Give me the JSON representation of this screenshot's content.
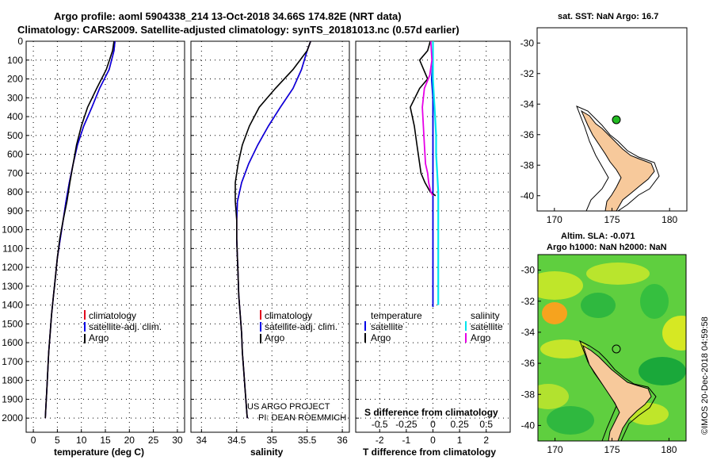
{
  "title_line1": "Argo profile: aoml 5904338_214 13-Oct-2018 34.66S 174.82E (NRT data)",
  "title_line2": "Climatology: CARS2009. Satellite-adjusted climatology: synTS_20181013.nc (0.57d earlier)",
  "colors": {
    "climatology": "#e0001b",
    "satellite": "#0000e6",
    "argo": "#000000",
    "s_satellite": "#00e5ee",
    "s_argo": "#e600e6",
    "land": "#f7c99b",
    "map_marker": "#22bb22"
  },
  "chart_data": [
    {
      "type": "line",
      "panel": "temperature",
      "xlabel": "temperature (deg C)",
      "xlim": [
        -1.5,
        31.5
      ],
      "ylim": [
        2075,
        0
      ],
      "xticks": [
        0,
        5,
        10,
        15,
        20,
        25,
        30
      ],
      "yticks": [
        0,
        100,
        200,
        300,
        400,
        500,
        600,
        700,
        800,
        900,
        1000,
        1100,
        1200,
        1300,
        1400,
        1500,
        1600,
        1700,
        1800,
        1900,
        2000
      ],
      "legend": [
        "climatology",
        "satellite-adj. clim.",
        "Argo"
      ],
      "series": [
        {
          "name": "climatology",
          "x": [
            17,
            16.8,
            15.8,
            13.8,
            12.2,
            10.5,
            9.2,
            8.3,
            7.5,
            6.8,
            6.2,
            5.6,
            5.0,
            4.6,
            4.2,
            3.8,
            3.5,
            3.2,
            3.0,
            2.8,
            2.6,
            2.5
          ],
          "depth": [
            0,
            50,
            150,
            250,
            350,
            450,
            550,
            650,
            750,
            850,
            950,
            1050,
            1150,
            1250,
            1350,
            1450,
            1550,
            1650,
            1750,
            1850,
            1950,
            2000
          ]
        },
        {
          "name": "satellite-adj. clim.",
          "x": [
            17,
            16.8,
            15.8,
            13.8,
            12.2,
            10.5,
            9.2,
            8.3,
            7.5,
            6.8,
            6.2,
            5.6,
            5.0,
            4.6,
            4.2,
            3.8,
            3.5,
            3.2,
            3.0,
            2.8,
            2.6,
            2.5
          ],
          "depth": [
            0,
            50,
            150,
            250,
            350,
            450,
            550,
            650,
            750,
            850,
            950,
            1050,
            1150,
            1250,
            1350,
            1450,
            1550,
            1650,
            1750,
            1850,
            1950,
            2000
          ]
        },
        {
          "name": "Argo",
          "x": [
            16.8,
            16.5,
            15.2,
            13.2,
            11.3,
            10.0,
            9.0,
            8.3,
            7.6,
            7.0,
            6.2,
            5.5,
            5.0,
            4.6,
            4.2,
            3.8,
            3.5,
            3.2,
            3.0,
            2.8,
            2.6,
            2.5
          ],
          "depth": [
            0,
            50,
            150,
            250,
            350,
            450,
            550,
            650,
            750,
            850,
            950,
            1050,
            1150,
            1250,
            1350,
            1450,
            1550,
            1650,
            1750,
            1850,
            1950,
            2000
          ]
        }
      ]
    },
    {
      "type": "line",
      "panel": "salinity",
      "xlabel": "salinity",
      "xlim": [
        33.85,
        36.1
      ],
      "ylim": [
        2075,
        0
      ],
      "xticks": [
        34,
        34.5,
        35,
        35.5,
        36
      ],
      "xticklabels": [
        "34",
        "34.5",
        "35",
        "35.5",
        "36"
      ],
      "legend": [
        "climatology",
        "satellite-adj. clim.",
        "Argo"
      ],
      "series": [
        {
          "name": "climatology",
          "x": [
            35.55,
            35.5,
            35.42,
            35.3,
            35.12,
            34.95,
            34.8,
            34.67,
            34.57,
            34.51,
            34.5,
            34.5,
            34.51,
            34.52,
            34.53,
            34.55,
            34.57,
            34.58,
            34.6,
            34.62,
            34.64,
            34.65
          ],
          "depth": [
            0,
            50,
            150,
            250,
            350,
            450,
            550,
            650,
            750,
            850,
            950,
            1050,
            1150,
            1250,
            1350,
            1450,
            1550,
            1650,
            1750,
            1850,
            1950,
            2000
          ]
        },
        {
          "name": "satellite-adj. clim.",
          "x": [
            35.55,
            35.5,
            35.42,
            35.3,
            35.12,
            34.95,
            34.8,
            34.67,
            34.57,
            34.51,
            34.5,
            34.5,
            34.51,
            34.52,
            34.53,
            34.55,
            34.57,
            34.58,
            34.6,
            34.62,
            34.64,
            34.65
          ],
          "depth": [
            0,
            50,
            150,
            250,
            350,
            450,
            550,
            650,
            750,
            850,
            950,
            1050,
            1150,
            1250,
            1350,
            1450,
            1550,
            1650,
            1750,
            1850,
            1950,
            2000
          ]
        },
        {
          "name": "Argo",
          "x": [
            35.55,
            35.5,
            35.3,
            35.05,
            34.82,
            34.68,
            34.58,
            34.52,
            34.48,
            34.48,
            34.5,
            34.5,
            34.51,
            34.52,
            34.53,
            34.55,
            34.57,
            34.58,
            34.6,
            34.62,
            34.64,
            34.65
          ],
          "depth": [
            0,
            50,
            150,
            250,
            350,
            450,
            550,
            650,
            750,
            850,
            950,
            1050,
            1150,
            1250,
            1350,
            1450,
            1550,
            1650,
            1750,
            1850,
            1950,
            2000
          ]
        }
      ]
    },
    {
      "type": "line",
      "panel": "difference",
      "xlabel": "T difference from climatology",
      "xlabel_top": "S difference from climatology",
      "xlim": [
        -2.9,
        2.9
      ],
      "ylim": [
        2075,
        0
      ],
      "xticks": [
        -2,
        -1,
        0,
        1,
        2
      ],
      "s_ticks": [
        -0.5,
        -0.25,
        0,
        0.25,
        0.5
      ],
      "s_ticklabels": [
        "-0.5",
        "-0.25",
        "0",
        "0.25",
        "0.5"
      ],
      "legend_headers": [
        "temperature",
        "salinity"
      ],
      "legend_t": [
        "satellite",
        "Argo"
      ],
      "legend_s": [
        "satellite",
        "Argo"
      ],
      "series": [
        {
          "name": "T satellite",
          "x": [
            0,
            0,
            -0.05,
            0,
            0,
            0,
            0,
            0,
            0,
            0,
            0,
            0,
            0,
            0,
            0,
            0
          ],
          "depth": [
            0,
            100,
            200,
            300,
            400,
            500,
            600,
            700,
            800,
            900,
            1000,
            1100,
            1200,
            1300,
            1400,
            1410
          ]
        },
        {
          "name": "T Argo",
          "x": [
            -0.1,
            -0.2,
            -0.5,
            -0.2,
            -0.5,
            -0.85,
            -0.7,
            -0.6,
            -0.5,
            -0.45,
            -0.3,
            -0.1,
            0.1
          ],
          "depth": [
            0,
            50,
            100,
            200,
            250,
            350,
            450,
            550,
            650,
            700,
            750,
            800,
            820
          ]
        },
        {
          "name": "S satellite",
          "x": [
            0,
            0,
            0,
            0.01,
            0.02,
            0.03,
            0.03,
            0.04,
            0.05,
            0.05,
            0.05,
            0.05,
            0.05,
            0.05,
            0.05
          ],
          "depth": [
            0,
            100,
            200,
            300,
            400,
            500,
            600,
            700,
            800,
            900,
            1000,
            1100,
            1200,
            1300,
            1400
          ]
        },
        {
          "name": "S Argo",
          "x": [
            -0.02,
            -0.01,
            -0.03,
            -0.08,
            -0.1,
            -0.09,
            -0.08,
            -0.07,
            -0.05,
            -0.04,
            -0.02,
            0
          ],
          "depth": [
            0,
            100,
            180,
            250,
            350,
            450,
            550,
            650,
            700,
            750,
            800,
            820
          ]
        }
      ]
    }
  ],
  "credits": {
    "line1": "US ARGO PROJECT",
    "line2": "PI: DEAN ROEMMICH"
  },
  "map1": {
    "title": "sat. SST: NaN Argo: 16.7",
    "xticks": [
      170,
      175,
      180
    ],
    "yticks": [
      -30,
      -32,
      -34,
      -36,
      -38,
      -40
    ],
    "marker_lon": 174.82,
    "marker_lat": -34.66
  },
  "map2": {
    "title_line1": "Altim. SLA: -0.071",
    "title_line2": "Argo h1000: NaN h2000: NaN",
    "xticks": [
      170,
      175,
      180
    ],
    "yticks": [
      -30,
      -32,
      -34,
      -36,
      -38,
      -40
    ],
    "marker_lon": 174.82,
    "marker_lat": -34.66
  },
  "side_stamp": "©IMOS 20-Dec-2018 04:59:58"
}
